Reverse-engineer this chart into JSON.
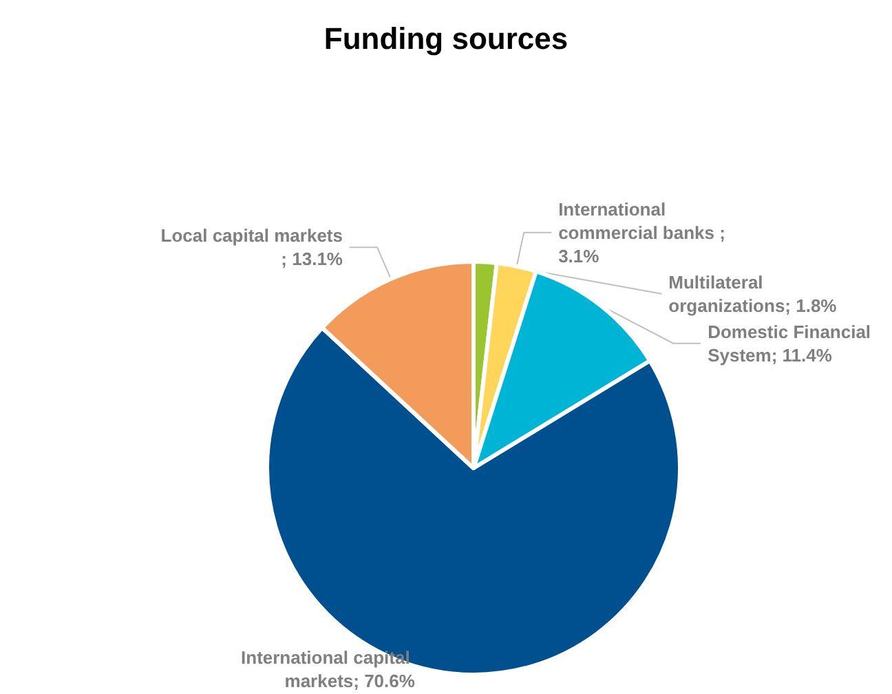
{
  "chart_data": {
    "type": "pie",
    "title": "Funding sources",
    "categories": [
      "Multilateral organizations",
      "International commercial banks ",
      "Domestic Financial System",
      "International capital markets",
      "Local capital markets "
    ],
    "values": [
      1.8,
      3.1,
      11.4,
      70.6,
      13.1
    ],
    "colors": [
      "#9bc431",
      "#ffd55a",
      "#00b4d6",
      "#004f8f",
      "#f39b5b"
    ],
    "value_labels": [
      "; 1.8%",
      "; 3.1%",
      "; 11.4%",
      "; 70.6%",
      "; 13.1%"
    ],
    "legend": false
  }
}
